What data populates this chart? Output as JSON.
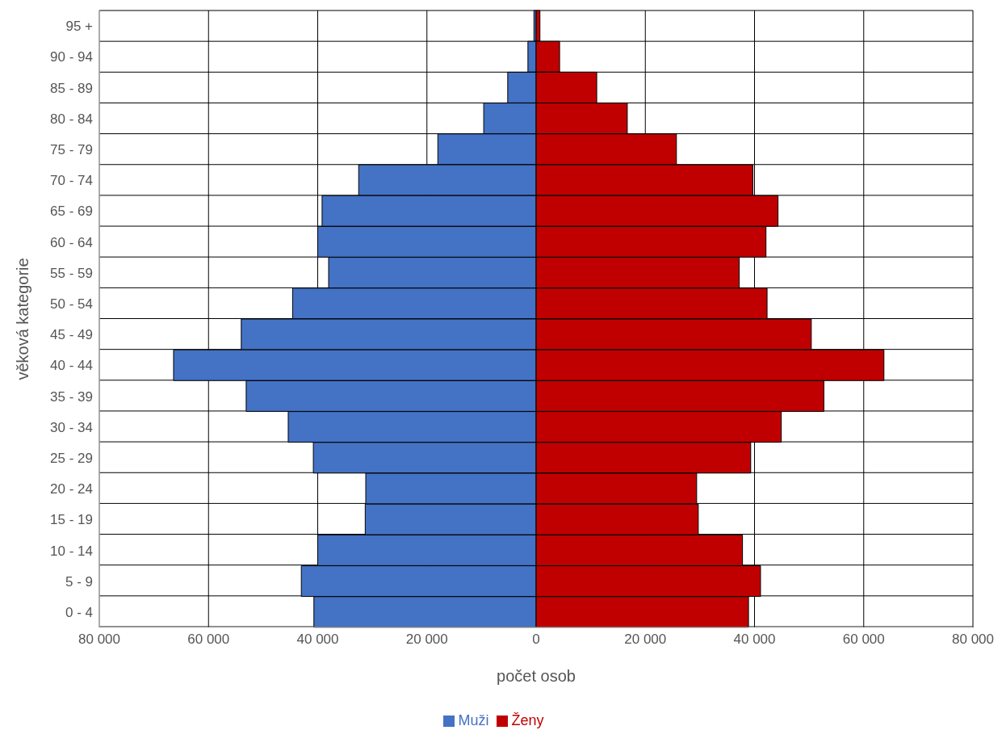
{
  "chart_data": {
    "type": "bar",
    "orientation": "horizontal",
    "stacked": true,
    "categories": [
      "95 +",
      "90 - 94",
      "85 - 89",
      "80 - 84",
      "75 - 79",
      "70 - 74",
      "65 - 69",
      "60 - 64",
      "55 - 59",
      "50 - 54",
      "45 - 49",
      "40 - 44",
      "35 - 39",
      "30 - 34",
      "25 - 29",
      "20 - 24",
      "15 - 19",
      "10 - 14",
      "5 - 9",
      "0 - 4"
    ],
    "series": [
      {
        "name": "Muži",
        "color": "#4472c4",
        "values": [
          -400,
          -1500,
          -5200,
          -9600,
          -18000,
          -32500,
          -39200,
          -40000,
          -38000,
          -44600,
          -54000,
          -66400,
          -53100,
          -45400,
          -40800,
          -31200,
          -31300,
          -40000,
          -43000,
          -40700
        ]
      },
      {
        "name": "Ženy",
        "color": "#c00000",
        "values": [
          700,
          4300,
          11100,
          16700,
          25700,
          39700,
          44300,
          42100,
          37200,
          42300,
          50400,
          63700,
          52700,
          44900,
          39300,
          29400,
          29700,
          37800,
          41100,
          38900
        ]
      }
    ],
    "xlim": [
      -80000,
      80000
    ],
    "xticks": [
      {
        "value": -80000,
        "label": "80 000"
      },
      {
        "value": -60000,
        "label": "60 000"
      },
      {
        "value": -40000,
        "label": "40 000"
      },
      {
        "value": -20000,
        "label": "20 000"
      },
      0,
      {
        "value": 20000,
        "label": "20 000"
      },
      {
        "value": 40000,
        "label": "40 000"
      },
      {
        "value": 60000,
        "label": "60 000"
      },
      {
        "value": 80000,
        "label": "80 000"
      }
    ],
    "xlabel": "počet osob",
    "ylabel": "věková kategorie",
    "grid": true,
    "legend": "bottom"
  }
}
